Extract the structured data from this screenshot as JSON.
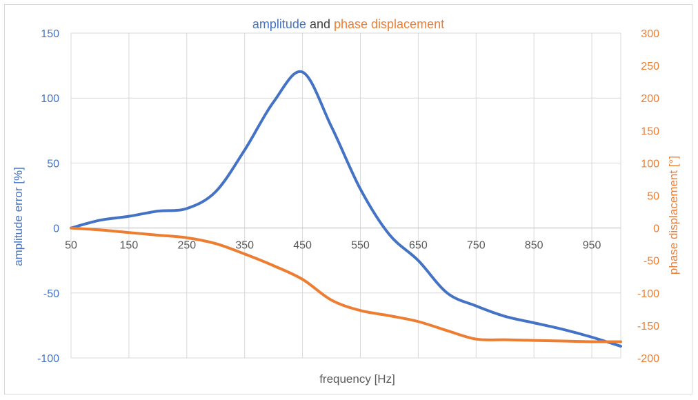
{
  "colors": {
    "amplitude": "#4472c4",
    "phase": "#ed7d31",
    "title_connector": "#404040",
    "grid": "#d9d9d9",
    "xaxis_text": "#595959"
  },
  "chart_data": {
    "type": "line",
    "title_parts": [
      {
        "text": "amplitude",
        "color_key": "amplitude"
      },
      {
        "text": " and ",
        "color_key": "title_connector"
      },
      {
        "text": "phase displacement",
        "color_key": "phase"
      }
    ],
    "xlabel": "frequency [Hz]",
    "ylabel_left": "amplitude error [%]",
    "ylabel_right": "phase displacement [°]",
    "xlim": [
      50,
      1000
    ],
    "x_ticks": [
      50,
      150,
      250,
      350,
      450,
      550,
      650,
      750,
      850,
      950
    ],
    "ylim_left": [
      -100,
      150
    ],
    "y_ticks_left": [
      150,
      100,
      50,
      0,
      -50,
      -100
    ],
    "ylim_right": [
      -200,
      300
    ],
    "y_ticks_right": [
      300,
      250,
      200,
      150,
      100,
      50,
      0,
      -50,
      -100,
      -150,
      -200
    ],
    "grid": true,
    "legend": "none",
    "series": [
      {
        "color_key": "amplitude",
        "axis": "left",
        "x": [
          50,
          100,
          150,
          200,
          250,
          300,
          350,
          400,
          450,
          500,
          550,
          600,
          650,
          700,
          750,
          800,
          850,
          900,
          950,
          1000
        ],
        "values": [
          0,
          6,
          9,
          13,
          15,
          28,
          60,
          97,
          120,
          78,
          30,
          -5,
          -25,
          -50,
          -60,
          -68,
          -73,
          -78,
          -84,
          -91
        ]
      },
      {
        "color_key": "phase",
        "axis": "right",
        "x": [
          50,
          100,
          150,
          200,
          250,
          300,
          350,
          400,
          450,
          500,
          550,
          600,
          650,
          700,
          750,
          800,
          850,
          900,
          950,
          1000
        ],
        "values": [
          0,
          -3,
          -7,
          -11,
          -15,
          -24,
          -40,
          -58,
          -79,
          -111,
          -127,
          -135,
          -144,
          -158,
          -171,
          -172,
          -173,
          -174,
          -175,
          -175
        ]
      }
    ]
  }
}
